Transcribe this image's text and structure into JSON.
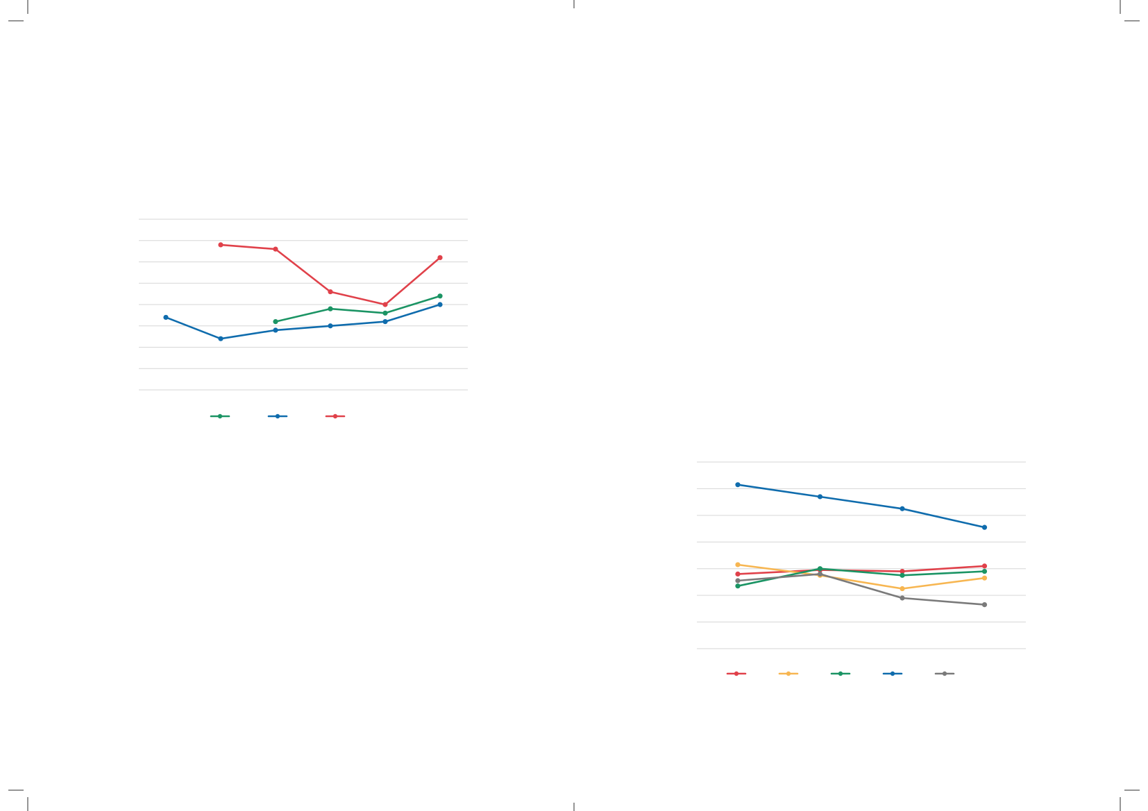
{
  "page": {
    "crop_mark_color": "#2b2b2b"
  },
  "chart_data": [
    {
      "type": "line",
      "x": [
        1,
        2,
        3,
        4,
        5,
        6
      ],
      "ylim": [
        0,
        8
      ],
      "grid": true,
      "gridlines": 9,
      "legend_placement": "bottom-center",
      "series": [
        {
          "color": "#1b9464",
          "values": [
            null,
            null,
            3.2,
            3.8,
            3.6,
            4.4
          ]
        },
        {
          "color": "#0f6cad",
          "values": [
            3.4,
            2.4,
            2.8,
            3.0,
            3.2,
            4.0
          ]
        },
        {
          "color": "#e0414a",
          "values": [
            null,
            6.8,
            6.6,
            4.6,
            4.0,
            6.2
          ]
        }
      ]
    },
    {
      "type": "line",
      "x": [
        1,
        2,
        3,
        4
      ],
      "ylim": [
        0,
        7
      ],
      "grid": true,
      "gridlines": 8,
      "legend_placement": "bottom-center",
      "series": [
        {
          "color": "#e0414a",
          "values": [
            2.8,
            2.95,
            2.9,
            3.1
          ]
        },
        {
          "color": "#f7b651",
          "values": [
            3.15,
            2.75,
            2.25,
            2.65
          ]
        },
        {
          "color": "#1b9464",
          "values": [
            2.35,
            3.0,
            2.75,
            2.9
          ]
        },
        {
          "color": "#0f6cad",
          "values": [
            6.15,
            5.7,
            5.25,
            4.55
          ]
        },
        {
          "color": "#7a7a7a",
          "values": [
            2.55,
            2.8,
            1.9,
            1.65
          ]
        }
      ]
    }
  ]
}
